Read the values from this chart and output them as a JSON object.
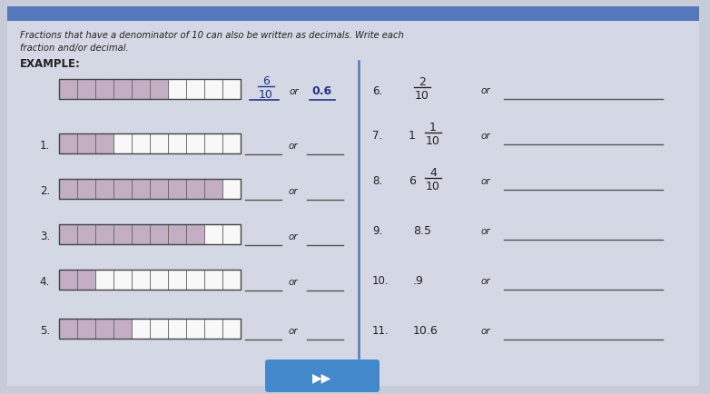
{
  "title_line1": "Fractions that have a denominator of 10 can also be written as decimals. Write each",
  "title_line2": "fraction and/or decimal.",
  "example_label": "EXAMPLE:",
  "bar_filled_color": "#c4aec4",
  "bar_empty_color": "#f8f8f8",
  "bar_border_color": "#666666",
  "left_rows": [
    {
      "label": "",
      "filled": 6,
      "total": 10,
      "show_example": true
    },
    {
      "label": "1.",
      "filled": 3,
      "total": 10
    },
    {
      "label": "2.",
      "filled": 9,
      "total": 10
    },
    {
      "label": "3.",
      "filled": 8,
      "total": 10
    },
    {
      "label": "4.",
      "filled": 2,
      "total": 10
    },
    {
      "label": "5.",
      "filled": 4,
      "total": 10
    }
  ],
  "right_rows": [
    {
      "label": "6.",
      "type": "fraction",
      "numerator": "2",
      "denominator": "10",
      "whole": ""
    },
    {
      "label": "7.",
      "type": "mixed",
      "numerator": "1",
      "denominator": "10",
      "whole": "1"
    },
    {
      "label": "8.",
      "type": "mixed",
      "numerator": "4",
      "denominator": "10",
      "whole": "6"
    },
    {
      "label": "9.",
      "type": "decimal",
      "text": "8.5"
    },
    {
      "label": "10.",
      "type": "decimal",
      "text": ".9"
    },
    {
      "label": "11.",
      "type": "decimal",
      "text": "10.6"
    }
  ],
  "bg_color": "#c8ccd8",
  "paper_color": "#d8dce8",
  "top_bar_color": "#5577bb",
  "bottom_btn_color": "#4488cc",
  "divider_color": "#5577bb",
  "text_color": "#222222",
  "example_fraction_color": "#223388",
  "example_decimal_color": "#223388"
}
